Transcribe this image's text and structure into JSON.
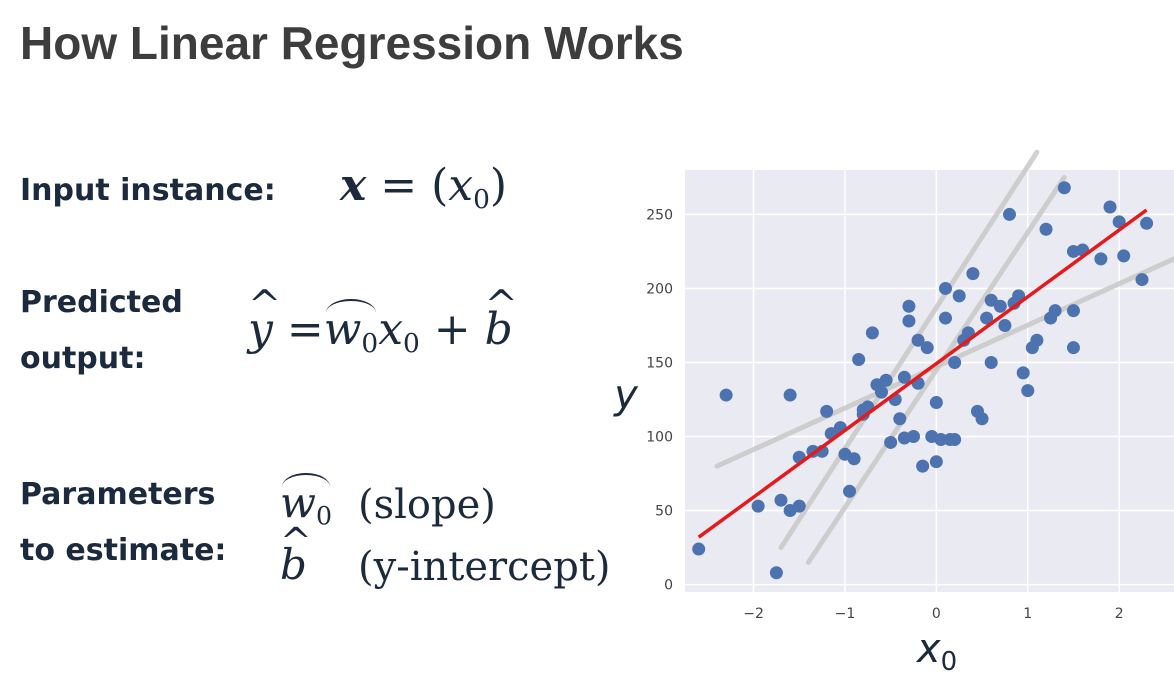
{
  "slide": {
    "title": "How Linear Regression Works",
    "input_label": "Input instance:",
    "predicted_label_1": "Predicted",
    "predicted_label_2": "output:",
    "params_label_1": "Parameters",
    "params_label_2": "to estimate:",
    "slope_desc": "(slope)",
    "intercept_desc": "(y-intercept)"
  },
  "chart_data": {
    "type": "scatter",
    "xlabel": "x0",
    "ylabel": "y",
    "xlim": [
      -2.75,
      2.6
    ],
    "ylim": [
      -5,
      280
    ],
    "xticks": [
      -2,
      -1,
      0,
      1,
      2
    ],
    "yticks": [
      0,
      50,
      100,
      150,
      200,
      250
    ],
    "grid": true,
    "background": "#eaeaf2",
    "point_color": "#4c72b0",
    "points": [
      [
        -2.6,
        24
      ],
      [
        -1.95,
        53
      ],
      [
        -1.75,
        8
      ],
      [
        -1.7,
        57
      ],
      [
        -1.6,
        50
      ],
      [
        -1.5,
        53
      ],
      [
        -1.5,
        86
      ],
      [
        -1.35,
        90
      ],
      [
        -1.2,
        117
      ],
      [
        -1.15,
        102
      ],
      [
        -1.05,
        106
      ],
      [
        -1.0,
        88
      ],
      [
        -0.95,
        63
      ],
      [
        -0.9,
        85
      ],
      [
        -0.85,
        152
      ],
      [
        -0.8,
        118
      ],
      [
        -0.8,
        115
      ],
      [
        -0.75,
        120
      ],
      [
        -0.7,
        170
      ],
      [
        -0.65,
        135
      ],
      [
        -0.6,
        130
      ],
      [
        -0.55,
        138
      ],
      [
        -0.5,
        96
      ],
      [
        -0.45,
        125
      ],
      [
        -0.4,
        112
      ],
      [
        -0.35,
        99
      ],
      [
        -0.3,
        188
      ],
      [
        -0.3,
        178
      ],
      [
        -0.25,
        100
      ],
      [
        -0.2,
        136
      ],
      [
        -0.2,
        165
      ],
      [
        -0.15,
        80
      ],
      [
        -0.1,
        160
      ],
      [
        -0.05,
        100
      ],
      [
        0.0,
        83
      ],
      [
        0.0,
        123
      ],
      [
        0.05,
        98
      ],
      [
        0.1,
        180
      ],
      [
        0.1,
        200
      ],
      [
        0.15,
        98
      ],
      [
        0.2,
        150
      ],
      [
        0.25,
        195
      ],
      [
        0.3,
        165
      ],
      [
        0.35,
        170
      ],
      [
        0.4,
        210
      ],
      [
        0.45,
        117
      ],
      [
        0.5,
        112
      ],
      [
        0.55,
        180
      ],
      [
        0.6,
        150
      ],
      [
        0.7,
        188
      ],
      [
        0.75,
        175
      ],
      [
        0.8,
        250
      ],
      [
        0.85,
        190
      ],
      [
        0.9,
        195
      ],
      [
        0.95,
        143
      ],
      [
        1.0,
        131
      ],
      [
        1.05,
        160
      ],
      [
        1.1,
        165
      ],
      [
        1.2,
        240
      ],
      [
        1.25,
        180
      ],
      [
        1.3,
        185
      ],
      [
        1.4,
        268
      ],
      [
        1.5,
        225
      ],
      [
        1.5,
        185
      ],
      [
        1.5,
        160
      ],
      [
        1.6,
        226
      ],
      [
        1.8,
        220
      ],
      [
        1.9,
        255
      ],
      [
        2.0,
        245
      ],
      [
        2.05,
        222
      ],
      [
        2.25,
        206
      ],
      [
        2.3,
        244
      ],
      [
        -2.3,
        128
      ],
      [
        -1.6,
        128
      ],
      [
        -0.35,
        140
      ],
      [
        0.6,
        192
      ],
      [
        -1.25,
        90
      ],
      [
        0.2,
        98
      ]
    ],
    "fit_line": {
      "color": "#e41a1c",
      "x": [
        -2.6,
        2.3
      ],
      "y": [
        32,
        253
      ]
    },
    "candidate_lines": [
      {
        "color": "#c8c8c8",
        "x": [
          -1.7,
          1.1
        ],
        "y": [
          25,
          292
        ]
      },
      {
        "color": "#c8c8c8",
        "x": [
          -1.4,
          1.4
        ],
        "y": [
          15,
          275
        ]
      },
      {
        "color": "#c8c8c8",
        "x": [
          -2.4,
          2.6
        ],
        "y": [
          80,
          220
        ]
      }
    ]
  }
}
